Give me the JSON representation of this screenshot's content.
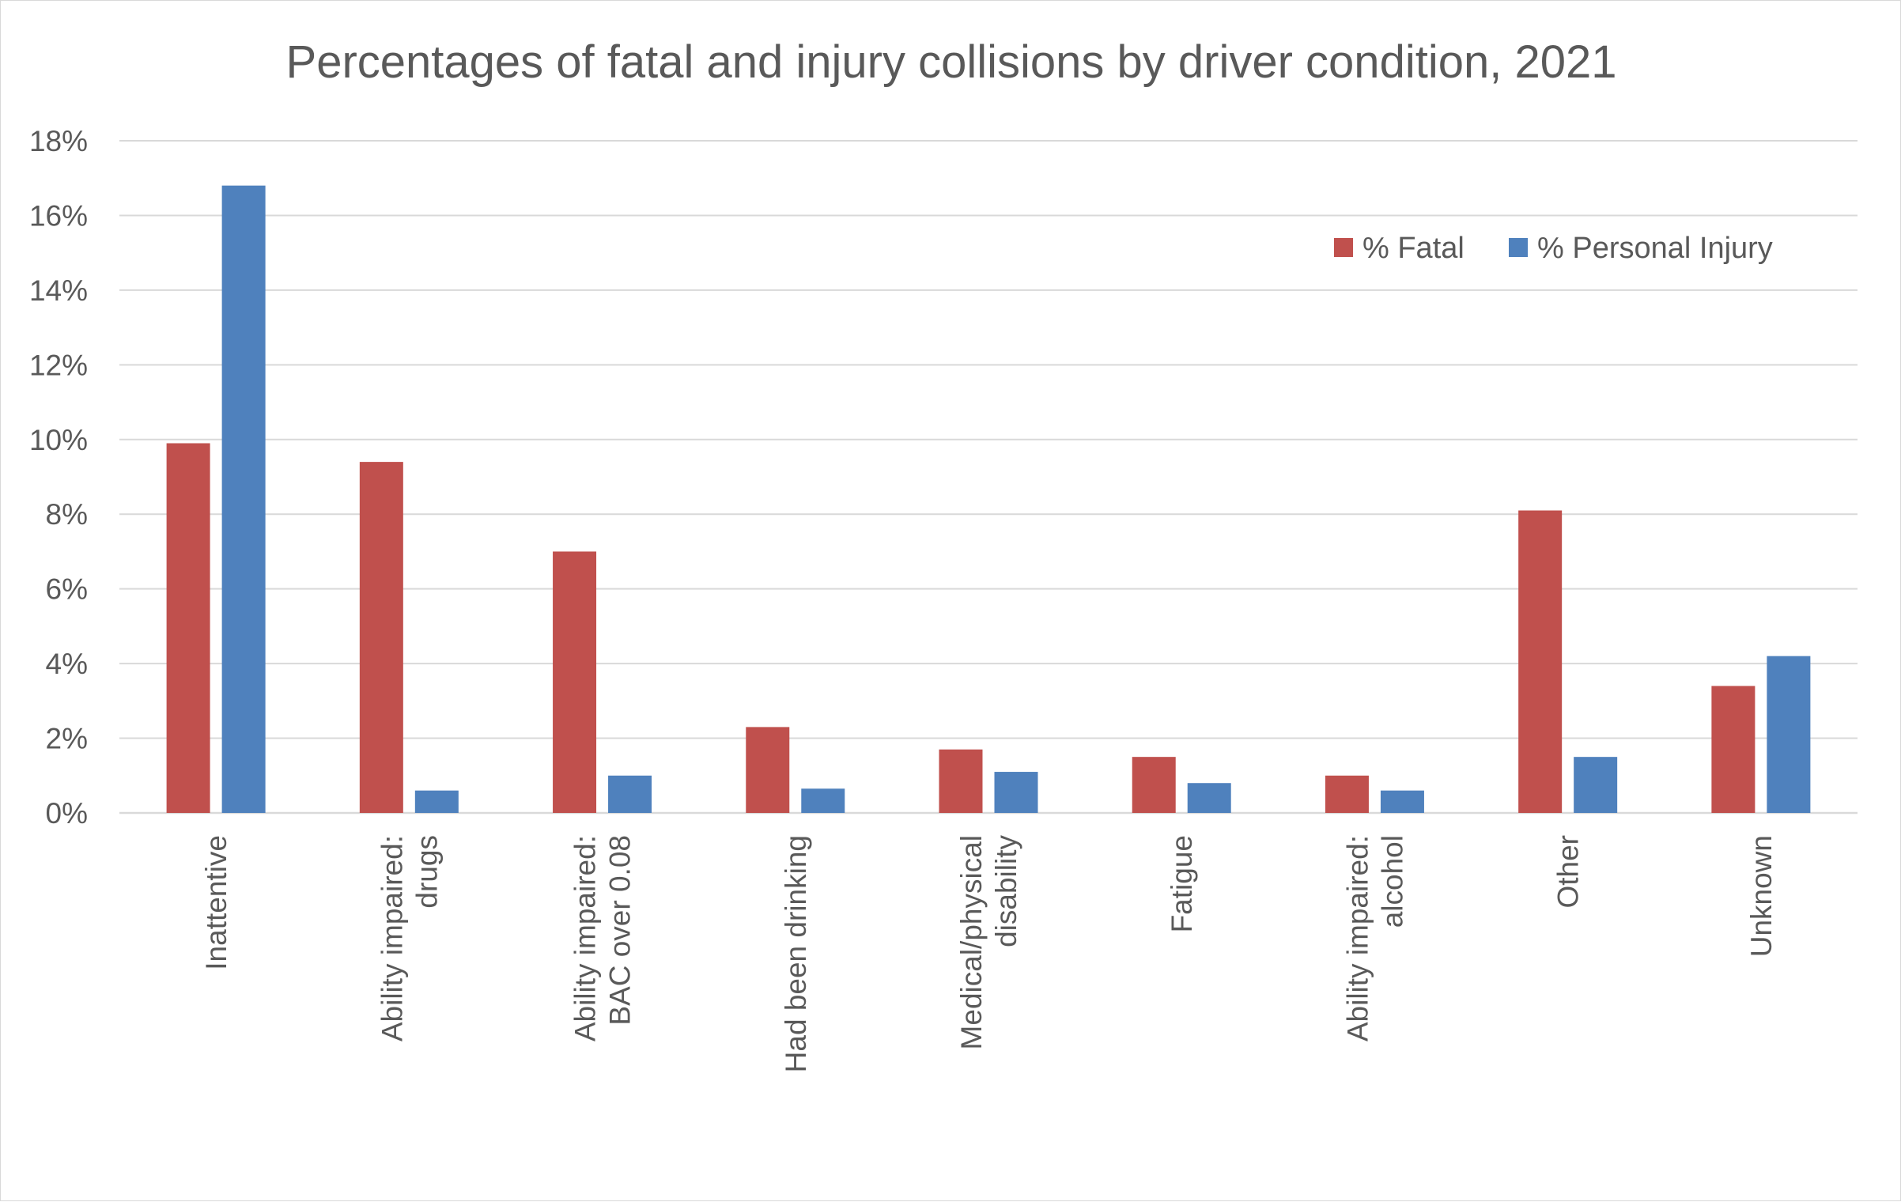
{
  "chart_data": {
    "type": "bar",
    "title": "Percentages of fatal and injury collisions by driver condition, 2021",
    "xlabel": "",
    "ylabel": "",
    "ylim": [
      0,
      18
    ],
    "yticks": [
      0,
      2,
      4,
      6,
      8,
      10,
      12,
      14,
      16,
      18
    ],
    "ytick_labels": [
      "0%",
      "2%",
      "4%",
      "6%",
      "8%",
      "10%",
      "12%",
      "14%",
      "16%",
      "18%"
    ],
    "grid": true,
    "legend_position": "top-right",
    "categories": [
      [
        "Inattentive"
      ],
      [
        "Ability impaired:",
        "drugs"
      ],
      [
        "Ability impaired:",
        "BAC over 0.08"
      ],
      [
        "Had been drinking"
      ],
      [
        "Medical/physical",
        "disability"
      ],
      [
        "Fatigue"
      ],
      [
        "Ability impaired:",
        "alcohol"
      ],
      [
        "Other"
      ],
      [
        "Unknown"
      ]
    ],
    "series": [
      {
        "name": "% Fatal",
        "color": "#c0504d",
        "values": [
          9.9,
          9.4,
          7.0,
          2.3,
          1.7,
          1.5,
          1.0,
          8.1,
          3.4
        ]
      },
      {
        "name": "% Personal Injury",
        "color": "#4f81bd",
        "values": [
          16.8,
          0.6,
          1.0,
          0.65,
          1.1,
          0.8,
          0.6,
          1.5,
          4.2
        ]
      }
    ]
  }
}
